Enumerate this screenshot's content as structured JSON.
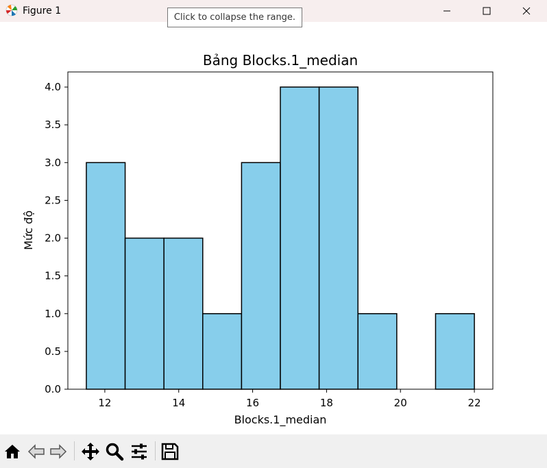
{
  "window": {
    "title": "Figure 1",
    "tooltip": "Click to collapse the range."
  },
  "toolbar": {
    "tools": [
      "home-icon",
      "back-icon",
      "forward-icon",
      "pan-icon",
      "zoom-icon",
      "configure-subplots-icon",
      "save-icon"
    ]
  },
  "chart_data": {
    "type": "bar",
    "title": "Bảng Blocks.1_median",
    "xlabel": "Blocks.1_median",
    "ylabel": "Mức độ",
    "bin_edges": [
      11.5,
      12.55,
      13.6,
      14.65,
      15.7,
      16.75,
      17.8,
      18.85,
      19.9,
      20.95,
      22.0
    ],
    "values": [
      3,
      2,
      2,
      1,
      3,
      4,
      4,
      1,
      0,
      1
    ],
    "xlim": [
      11.0,
      22.5
    ],
    "ylim": [
      0,
      4.2
    ],
    "xticks": [
      12,
      14,
      16,
      18,
      20,
      22
    ],
    "yticks": [
      0.0,
      0.5,
      1.0,
      1.5,
      2.0,
      2.5,
      3.0,
      3.5,
      4.0
    ],
    "xtick_labels": [
      "12",
      "14",
      "16",
      "18",
      "20",
      "22"
    ],
    "ytick_labels": [
      "0.0",
      "0.5",
      "1.0",
      "1.5",
      "2.0",
      "2.5",
      "3.0",
      "3.5",
      "4.0"
    ],
    "bar_color": "#87ceeb",
    "edge_color": "#000000",
    "grid": false
  }
}
